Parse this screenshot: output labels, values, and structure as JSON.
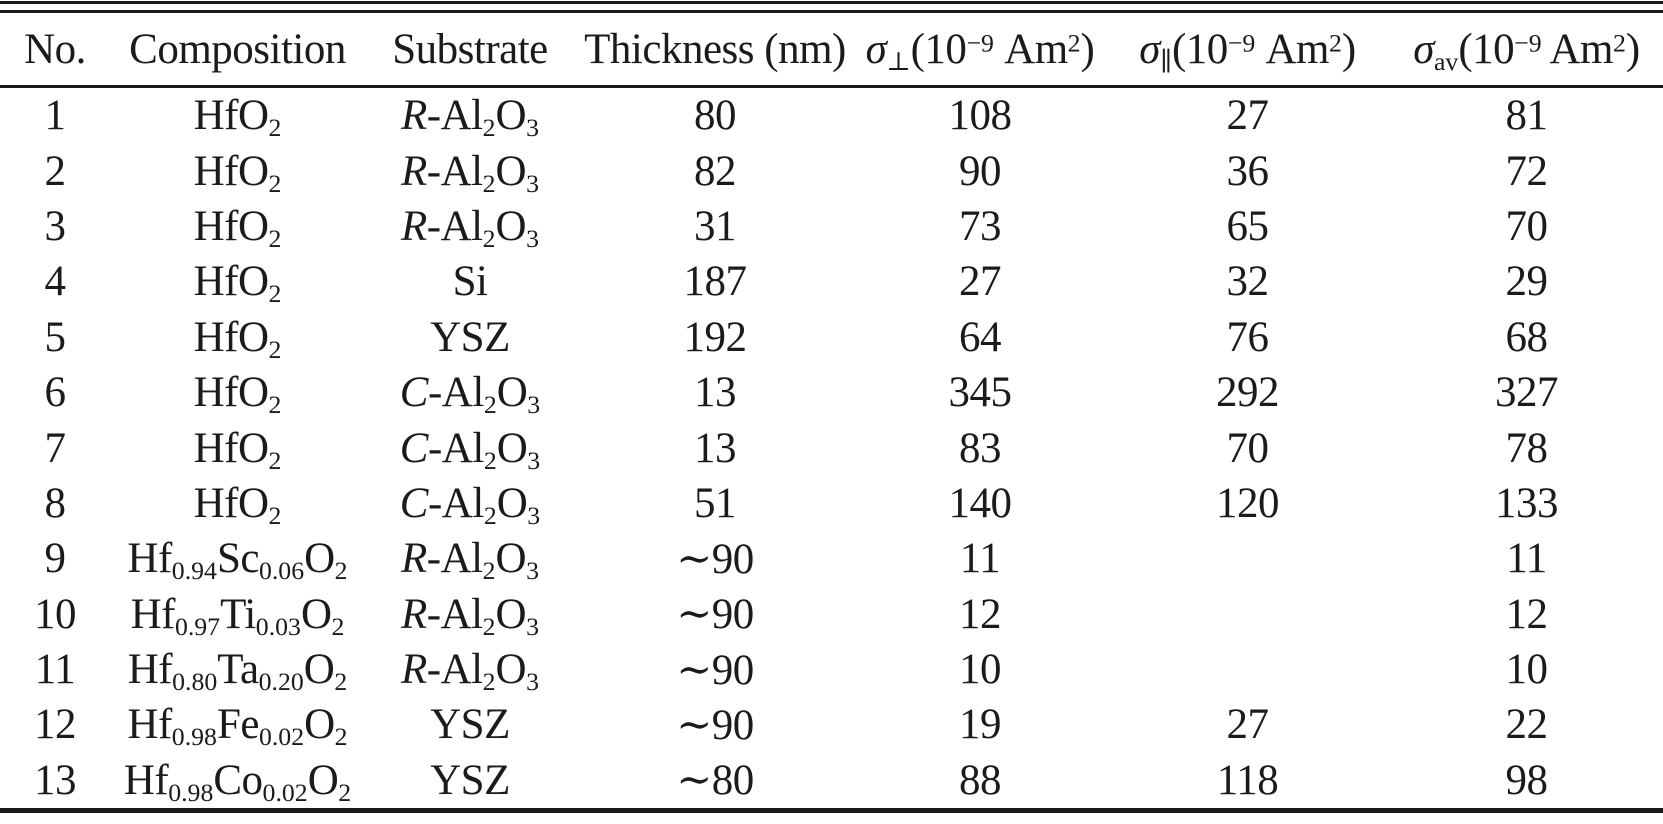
{
  "page": {
    "background_color": "#ffffff",
    "text_color": "#1b1b1b",
    "rule_color": "#1b1b1b"
  },
  "table": {
    "columns": [
      {
        "key": "no",
        "label": "No."
      },
      {
        "key": "composition",
        "label": "Composition"
      },
      {
        "key": "substrate",
        "label": "Substrate"
      },
      {
        "key": "thickness",
        "label": "Thickness (nm)"
      },
      {
        "key": "sigma_perp",
        "label": "*σ*_{⊥}(10^{−9} Am^{2})"
      },
      {
        "key": "sigma_par",
        "label": "*σ*_{∥}(10^{−9} Am^{2})"
      },
      {
        "key": "sigma_av",
        "label": "*σ*_{av}(10^{−9} Am^{2})"
      }
    ],
    "rows": [
      {
        "no": "1",
        "composition": "HfO_{2}",
        "substrate": "*R*-Al_{2}O_{3}",
        "thickness": "80",
        "sigma_perp": "108",
        "sigma_par": "27",
        "sigma_av": "81"
      },
      {
        "no": "2",
        "composition": "HfO_{2}",
        "substrate": "*R*-Al_{2}O_{3}",
        "thickness": "82",
        "sigma_perp": "90",
        "sigma_par": "36",
        "sigma_av": "72"
      },
      {
        "no": "3",
        "composition": "HfO_{2}",
        "substrate": "*R*-Al_{2}O_{3}",
        "thickness": "31",
        "sigma_perp": "73",
        "sigma_par": "65",
        "sigma_av": "70"
      },
      {
        "no": "4",
        "composition": "HfO_{2}",
        "substrate": "Si",
        "thickness": "187",
        "sigma_perp": "27",
        "sigma_par": "32",
        "sigma_av": "29"
      },
      {
        "no": "5",
        "composition": "HfO_{2}",
        "substrate": "YSZ",
        "thickness": "192",
        "sigma_perp": "64",
        "sigma_par": "76",
        "sigma_av": "68"
      },
      {
        "no": "6",
        "composition": "HfO_{2}",
        "substrate": "*C*-Al_{2}O_{3}",
        "thickness": "13",
        "sigma_perp": "345",
        "sigma_par": "292",
        "sigma_av": "327"
      },
      {
        "no": "7",
        "composition": "HfO_{2}",
        "substrate": "*C*-Al_{2}O_{3}",
        "thickness": "13",
        "sigma_perp": "83",
        "sigma_par": "70",
        "sigma_av": "78"
      },
      {
        "no": "8",
        "composition": "HfO_{2}",
        "substrate": "*C*-Al_{2}O_{3}",
        "thickness": "51",
        "sigma_perp": "140",
        "sigma_par": "120",
        "sigma_av": "133"
      },
      {
        "no": "9",
        "composition": "Hf_{0.94}Sc_{0.06}O_{2}",
        "substrate": "*R*-Al_{2}O_{3}",
        "thickness": "∼90",
        "sigma_perp": "11",
        "sigma_par": "",
        "sigma_av": "11"
      },
      {
        "no": "10",
        "composition": "Hf_{0.97}Ti_{0.03}O_{2}",
        "substrate": "*R*-Al_{2}O_{3}",
        "thickness": "∼90",
        "sigma_perp": "12",
        "sigma_par": "",
        "sigma_av": "12"
      },
      {
        "no": "11",
        "composition": "Hf_{0.80}Ta_{0.20}O_{2}",
        "substrate": "*R*-Al_{2}O_{3}",
        "thickness": "∼90",
        "sigma_perp": "10",
        "sigma_par": "",
        "sigma_av": "10"
      },
      {
        "no": "12",
        "composition": "Hf_{0.98}Fe_{0.02}O_{2}",
        "substrate": "YSZ",
        "thickness": "∼90",
        "sigma_perp": "19",
        "sigma_par": "27",
        "sigma_av": "22"
      },
      {
        "no": "13",
        "composition": "Hf_{0.98}Co_{0.02}O_{2}",
        "substrate": "YSZ",
        "thickness": "∼80",
        "sigma_perp": "88",
        "sigma_par": "118",
        "sigma_av": "98"
      }
    ]
  }
}
